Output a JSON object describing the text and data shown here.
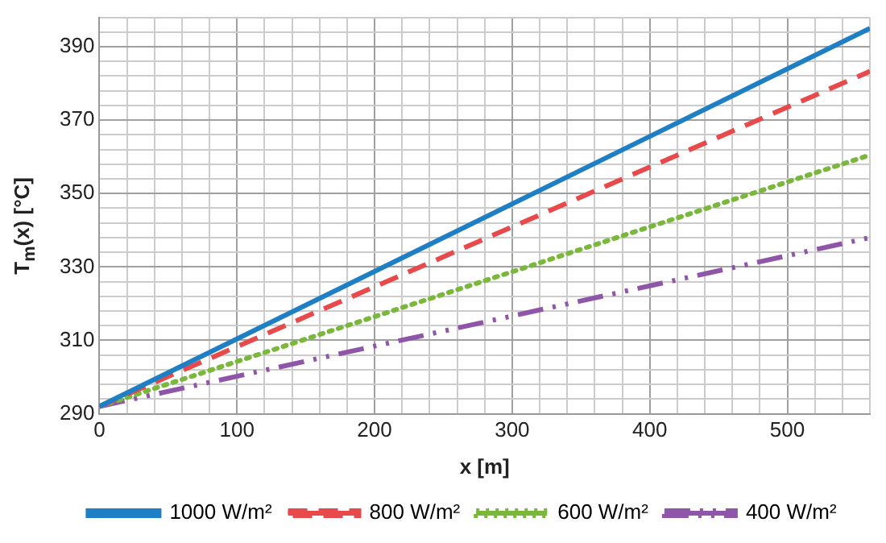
{
  "chart_data": {
    "type": "line",
    "xlabel": "x [m]",
    "ylabel": "T$_{m}$(x) [°C]",
    "x": [
      0,
      560
    ],
    "series": [
      {
        "name": "1000 W/m²",
        "color": "#1f7fc4",
        "values": [
          292,
          395
        ],
        "line_style": "solid"
      },
      {
        "name": "800 W/m²",
        "color": "#e8494a",
        "values": [
          292,
          383.3
        ],
        "line_style": "dashed"
      },
      {
        "name": "600 W/m²",
        "color": "#7ab83c",
        "values": [
          292,
          360.5
        ],
        "line_style": "dotted"
      },
      {
        "name": "400 W/m²",
        "color": "#8e55a8",
        "values": [
          292,
          338
        ],
        "line_style": "dashdot"
      }
    ],
    "xlim": [
      0,
      560
    ],
    "ylim": [
      290,
      398
    ],
    "xticks": [
      0,
      {
        "value": 20,
        "label": null
      },
      {
        "value": 40,
        "label": null
      },
      {
        "value": 60,
        "label": null
      },
      {
        "value": 80,
        "label": null
      },
      100,
      {
        "value": 120,
        "label": null
      },
      {
        "value": 140,
        "label": null
      },
      {
        "value": 160,
        "label": null
      },
      {
        "value": 180,
        "label": null
      },
      200,
      {
        "value": 220,
        "label": null
      },
      {
        "value": 240,
        "label": null
      },
      {
        "value": 260,
        "label": null
      },
      {
        "value": 280,
        "label": null
      },
      300,
      {
        "value": 320,
        "label": null
      },
      {
        "value": 340,
        "label": null
      },
      {
        "value": 360,
        "label": null
      },
      {
        "value": 380,
        "label": null
      },
      400,
      {
        "value": 420,
        "label": null
      },
      {
        "value": 440,
        "label": null
      },
      {
        "value": 460,
        "label": null
      },
      {
        "value": 480,
        "label": null
      },
      500,
      {
        "value": 520,
        "label": null
      },
      {
        "value": 540,
        "label": null
      },
      {
        "value": 560,
        "label": null
      }
    ],
    "yticks": [
      290,
      {
        "value": 294,
        "label": null
      },
      {
        "value": 298,
        "label": null
      },
      {
        "value": 302,
        "label": null
      },
      {
        "value": 306,
        "label": null
      },
      310,
      {
        "value": 314,
        "label": null
      },
      {
        "value": 318,
        "label": null
      },
      {
        "value": 322,
        "label": null
      },
      {
        "value": 326,
        "label": null
      },
      330,
      {
        "value": 334,
        "label": null
      },
      {
        "value": 338,
        "label": null
      },
      {
        "value": 342,
        "label": null
      },
      {
        "value": 346,
        "label": null
      },
      350,
      {
        "value": 354,
        "label": null
      },
      {
        "value": 358,
        "label": null
      },
      {
        "value": 362,
        "label": null
      },
      {
        "value": 366,
        "label": null
      },
      370,
      {
        "value": 374,
        "label": null
      },
      {
        "value": 378,
        "label": null
      },
      {
        "value": 382,
        "label": null
      },
      {
        "value": 386,
        "label": null
      },
      390,
      {
        "value": 394,
        "label": null
      },
      {
        "value": 398,
        "label": null
      }
    ],
    "grid": true,
    "legend": "bottom",
    "marker": "none"
  }
}
